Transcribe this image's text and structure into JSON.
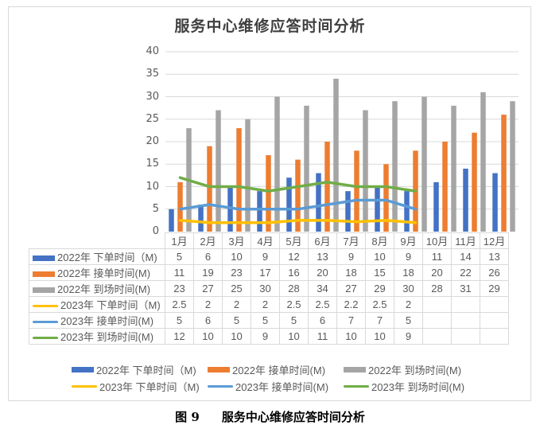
{
  "chart_data": {
    "type": "bar+line",
    "title": "服务中心维修应答时间分析",
    "caption_label": "图 9",
    "caption_text": "服务中心维修应答时间分析",
    "categories": [
      "1月",
      "2月",
      "3月",
      "4月",
      "5月",
      "6月",
      "7月",
      "8月",
      "9月",
      "10月",
      "11月",
      "12月"
    ],
    "ylim": [
      0,
      40
    ],
    "yticks": [
      0,
      5,
      10,
      15,
      20,
      25,
      30,
      35,
      40
    ],
    "grid": true,
    "legend_position": "bottom",
    "data_table": true,
    "series": [
      {
        "name": "2022年 下单时间（M)",
        "kind": "bar",
        "color": "#4472C4",
        "values": [
          5,
          6,
          10,
          9,
          12,
          13,
          9,
          10,
          9,
          11,
          14,
          13
        ]
      },
      {
        "name": "2022年 接单时间(M)",
        "kind": "bar",
        "color": "#ED7D31",
        "values": [
          11,
          19,
          23,
          17,
          16,
          20,
          18,
          15,
          18,
          20,
          22,
          26
        ]
      },
      {
        "name": "2022年 到场时间(M)",
        "kind": "bar",
        "color": "#A5A5A5",
        "values": [
          23,
          27,
          25,
          30,
          28,
          34,
          27,
          29,
          30,
          28,
          31,
          29
        ]
      },
      {
        "name": "2023年 下单时间（M)",
        "kind": "line",
        "color": "#FFC000",
        "values": [
          2.5,
          2,
          2,
          2,
          2.5,
          2.5,
          2.2,
          2.5,
          2,
          null,
          null,
          null
        ]
      },
      {
        "name": "2023年 接单时间(M)",
        "kind": "line",
        "color": "#5B9BD5",
        "values": [
          5,
          6,
          5,
          5,
          5,
          6,
          7,
          7,
          5,
          null,
          null,
          null
        ]
      },
      {
        "name": "2023年 到场时间(M)",
        "kind": "line",
        "color": "#70AD47",
        "values": [
          12,
          10,
          10,
          9,
          10,
          11,
          10,
          10,
          9,
          null,
          null,
          null
        ]
      }
    ]
  }
}
